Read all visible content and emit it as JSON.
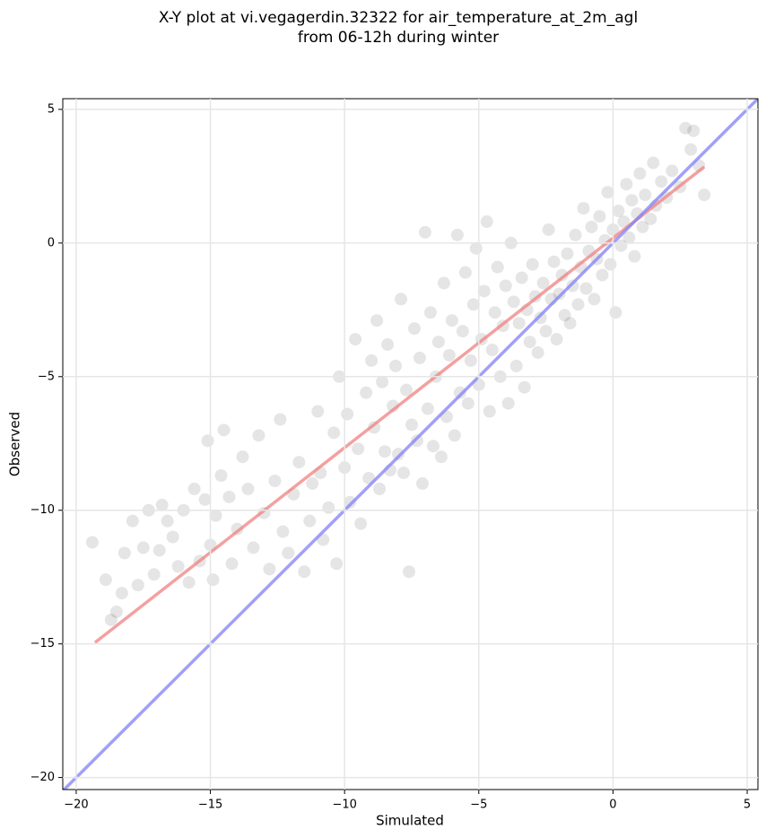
{
  "chart_data": {
    "type": "scatter",
    "title": "X-Y plot at vi.vegagerdin.32322 for air_temperature_at_2m_agl",
    "subtitle": "from 06-12h during winter",
    "xlabel": "Simulated",
    "ylabel": "Observed",
    "xlim": [
      -20.5,
      5.4
    ],
    "ylim": [
      -20.45,
      5.4
    ],
    "xticks": [
      {
        "value": -20,
        "label": "−20"
      },
      {
        "value": -15,
        "label": "−15"
      },
      {
        "value": -10,
        "label": "−10"
      },
      {
        "value": -5,
        "label": "−5"
      },
      0,
      5
    ],
    "yticks": [
      {
        "value": -20,
        "label": "−20"
      },
      {
        "value": -15,
        "label": "−15"
      },
      {
        "value": -10,
        "label": "−10"
      },
      {
        "value": -5,
        "label": "−5"
      },
      0,
      5
    ],
    "grid": true,
    "color": "#000000",
    "x": [
      -19.4,
      -18.9,
      -18.7,
      -18.5,
      -18.3,
      -18.2,
      -17.9,
      -17.7,
      -17.5,
      -17.3,
      -17.1,
      -16.9,
      -16.8,
      -16.6,
      -16.4,
      -16.2,
      -16.0,
      -15.8,
      -15.6,
      -15.4,
      -15.2,
      -15.1,
      -15.0,
      -14.9,
      -14.8,
      -14.6,
      -14.5,
      -14.3,
      -14.2,
      -14.0,
      -13.8,
      -13.6,
      -13.4,
      -13.2,
      -13.0,
      -12.8,
      -12.6,
      -12.4,
      -12.3,
      -12.1,
      -11.9,
      -11.7,
      -11.5,
      -11.3,
      -11.2,
      -11.0,
      -10.9,
      -10.8,
      -10.6,
      -10.4,
      -10.3,
      -10.2,
      -10.0,
      -9.9,
      -9.8,
      -9.6,
      -9.5,
      -9.4,
      -9.2,
      -9.1,
      -9.0,
      -8.9,
      -8.8,
      -8.7,
      -8.6,
      -8.5,
      -8.4,
      -8.3,
      -8.2,
      -8.1,
      -8.0,
      -7.9,
      -7.8,
      -7.7,
      -7.6,
      -7.5,
      -7.4,
      -7.3,
      -7.2,
      -7.1,
      -7.0,
      -6.9,
      -6.8,
      -6.7,
      -6.6,
      -6.5,
      -6.4,
      -6.3,
      -6.2,
      -6.1,
      -6.0,
      -5.9,
      -5.8,
      -5.7,
      -5.6,
      -5.5,
      -5.4,
      -5.3,
      -5.2,
      -5.1,
      -5.0,
      -4.9,
      -4.8,
      -4.7,
      -4.6,
      -4.5,
      -4.4,
      -4.3,
      -4.2,
      -4.1,
      -4.0,
      -3.9,
      -3.8,
      -3.7,
      -3.6,
      -3.5,
      -3.4,
      -3.3,
      -3.2,
      -3.1,
      -3.0,
      -2.9,
      -2.8,
      -2.7,
      -2.6,
      -2.5,
      -2.4,
      -2.3,
      -2.2,
      -2.1,
      -2.0,
      -1.9,
      -1.8,
      -1.7,
      -1.6,
      -1.5,
      -1.4,
      -1.3,
      -1.2,
      -1.1,
      -1.0,
      -0.9,
      -0.8,
      -0.7,
      -0.6,
      -0.5,
      -0.4,
      -0.3,
      -0.2,
      -0.1,
      0.0,
      0.1,
      0.2,
      0.3,
      0.4,
      0.5,
      0.6,
      0.7,
      0.8,
      0.9,
      1.0,
      1.1,
      1.2,
      1.4,
      1.5,
      1.6,
      1.8,
      2.0,
      2.2,
      2.5,
      2.7,
      2.9,
      3.0,
      3.2,
      3.4
    ],
    "values": [
      -11.2,
      -12.6,
      -14.1,
      -13.8,
      -13.1,
      -11.6,
      -10.4,
      -12.8,
      -11.4,
      -10.0,
      -12.4,
      -11.5,
      -9.8,
      -10.4,
      -11.0,
      -12.1,
      -10.0,
      -12.7,
      -9.2,
      -11.9,
      -9.6,
      -7.4,
      -11.3,
      -12.6,
      -10.2,
      -8.7,
      -7.0,
      -9.5,
      -12.0,
      -10.7,
      -8.0,
      -9.2,
      -11.4,
      -7.2,
      -10.1,
      -12.2,
      -8.9,
      -6.6,
      -10.8,
      -11.6,
      -9.4,
      -8.2,
      -12.3,
      -10.4,
      -9.0,
      -6.3,
      -8.6,
      -11.1,
      -9.9,
      -7.1,
      -12.0,
      -5.0,
      -8.4,
      -6.4,
      -9.7,
      -3.6,
      -7.7,
      -10.5,
      -5.6,
      -8.8,
      -4.4,
      -6.9,
      -2.9,
      -9.2,
      -5.2,
      -7.8,
      -3.8,
      -8.5,
      -6.1,
      -4.6,
      -7.9,
      -2.1,
      -8.6,
      -5.5,
      -12.3,
      -6.8,
      -3.2,
      -7.4,
      -4.3,
      -9.0,
      0.4,
      -6.2,
      -2.6,
      -7.6,
      -5.0,
      -3.7,
      -8.0,
      -1.5,
      -6.5,
      -4.2,
      -2.9,
      -7.2,
      0.3,
      -5.6,
      -3.3,
      -1.1,
      -6.0,
      -4.4,
      -2.3,
      -0.2,
      -5.3,
      -3.6,
      -1.8,
      0.8,
      -6.3,
      -4.0,
      -2.6,
      -0.9,
      -5.0,
      -3.1,
      -1.6,
      -6.0,
      0.0,
      -2.2,
      -4.6,
      -3.0,
      -1.3,
      -5.4,
      -2.5,
      -3.7,
      -0.8,
      -2.0,
      -4.1,
      -2.8,
      -1.5,
      -3.3,
      0.5,
      -2.1,
      -0.7,
      -3.6,
      -1.9,
      -1.2,
      -2.7,
      -0.4,
      -3.0,
      -1.6,
      0.3,
      -2.3,
      -0.9,
      1.3,
      -1.7,
      -0.3,
      0.6,
      -2.1,
      -0.6,
      1.0,
      -1.2,
      0.1,
      1.9,
      -0.8,
      0.5,
      -2.6,
      1.2,
      -0.1,
      0.8,
      2.2,
      0.2,
      1.6,
      -0.5,
      1.1,
      2.6,
      0.6,
      1.8,
      0.9,
      3.0,
      1.4,
      2.3,
      1.7,
      2.7,
      2.1,
      4.3,
      3.5,
      4.2,
      2.9,
      1.8
    ],
    "lines": [
      {
        "color": "#f08080",
        "x": [
          -19.3,
          3.4
        ],
        "y": [
          -14.95,
          2.85
        ]
      },
      {
        "color": "#8080f8",
        "x": [
          -20.5,
          5.4
        ],
        "y": [
          -20.5,
          5.4
        ]
      }
    ]
  }
}
